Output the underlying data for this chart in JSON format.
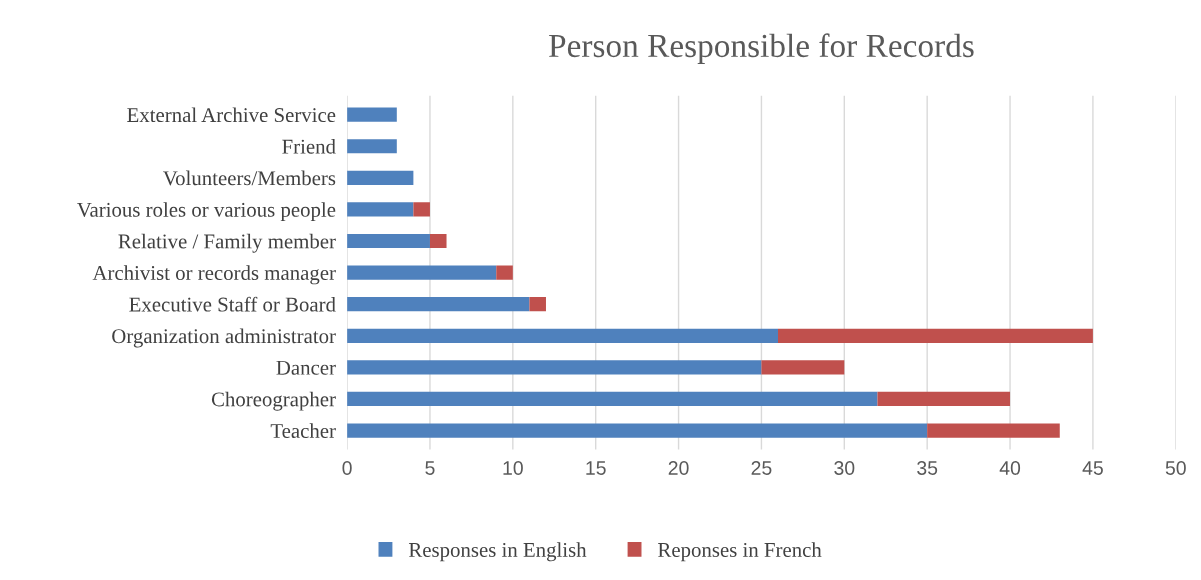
{
  "chart_data": {
    "type": "bar",
    "orientation": "horizontal",
    "stacked": true,
    "title": "Person Responsible for Records",
    "categories": [
      "External Archive Service",
      "Friend",
      "Volunteers/Members",
      "Various roles or various people",
      "Relative / Family member",
      "Archivist or records manager",
      "Executive Staff or Board",
      "Organization administrator",
      "Dancer",
      "Choreographer",
      "Teacher"
    ],
    "series": [
      {
        "name": "Responses in English",
        "color": "#4f81bd",
        "values": [
          3,
          3,
          4,
          4,
          5,
          9,
          11,
          26,
          25,
          32,
          35
        ]
      },
      {
        "name": "Reponses in French",
        "color": "#c0504d",
        "values": [
          0,
          0,
          0,
          1,
          1,
          1,
          1,
          19,
          5,
          8,
          8
        ]
      }
    ],
    "xlim": [
      0,
      50
    ],
    "xticks": [
      0,
      5,
      10,
      15,
      20,
      25,
      30,
      35,
      40,
      45,
      50
    ],
    "grid": "x",
    "legend": "bottom"
  }
}
